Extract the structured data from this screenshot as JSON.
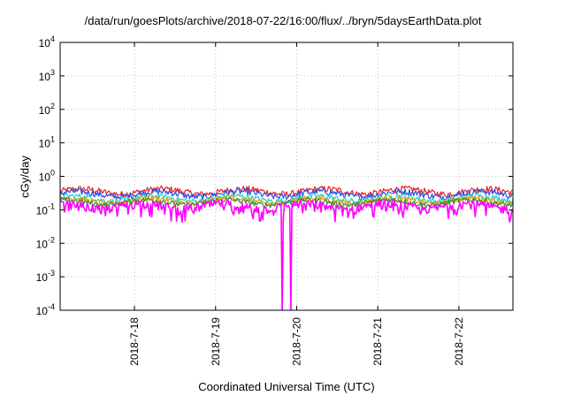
{
  "chart_data": {
    "type": "line",
    "title": "/data/run/goesPlots/archive/2018-07-22/16:00/flux/../bryn/5daysEarthData.plot",
    "xlabel": "Coordinated Universal Time (UTC)",
    "ylabel": "cGy/day",
    "y_scale": "log",
    "ylim": [
      0.0001,
      10000
    ],
    "y_ticks": [
      {
        "value": 0.0001,
        "base": "10",
        "exp": "-4"
      },
      {
        "value": 0.001,
        "base": "10",
        "exp": "-3"
      },
      {
        "value": 0.01,
        "base": "10",
        "exp": "-2"
      },
      {
        "value": 0.1,
        "base": "10",
        "exp": "-1"
      },
      {
        "value": 1,
        "base": "10",
        "exp": "0"
      },
      {
        "value": 10,
        "base": "10",
        "exp": "1"
      },
      {
        "value": 100,
        "base": "10",
        "exp": "2"
      },
      {
        "value": 1000,
        "base": "10",
        "exp": "3"
      },
      {
        "value": 10000,
        "base": "10",
        "exp": "4"
      }
    ],
    "x_start": "2018-07-17 02:00",
    "x_end": "2018-07-22 16:00",
    "x_ticks": [
      {
        "time": "2018-07-18 00:00",
        "label": "2018-7-18"
      },
      {
        "time": "2018-07-19 00:00",
        "label": "2018-7-19"
      },
      {
        "time": "2018-07-20 00:00",
        "label": "2018-7-20"
      },
      {
        "time": "2018-07-21 00:00",
        "label": "2018-7-21"
      },
      {
        "time": "2018-07-22 00:00",
        "label": "2018-7-22"
      }
    ],
    "grid": true,
    "series": [
      {
        "color": "#e8202a",
        "level": 0.36,
        "amp": 0.22
      },
      {
        "color": "#2a4fe0",
        "level": 0.3,
        "amp": 0.22
      },
      {
        "color": "#25d0d0",
        "level": 0.22,
        "amp": 0.2
      },
      {
        "color": "#e8a000",
        "level": 0.19,
        "amp": 0.18
      },
      {
        "color": "#3c8c2a",
        "level": 0.17,
        "amp": 0.18
      },
      {
        "color": "#ff00ff",
        "level": 0.13,
        "amp": 0.3
      }
    ],
    "dropouts": [
      {
        "start": "2018-07-19 19:30",
        "end": "2018-07-19 20:00",
        "value": 0.0001
      },
      {
        "start": "2018-07-19 22:00",
        "end": "2018-07-19 22:30",
        "value": 0.0001
      }
    ]
  }
}
